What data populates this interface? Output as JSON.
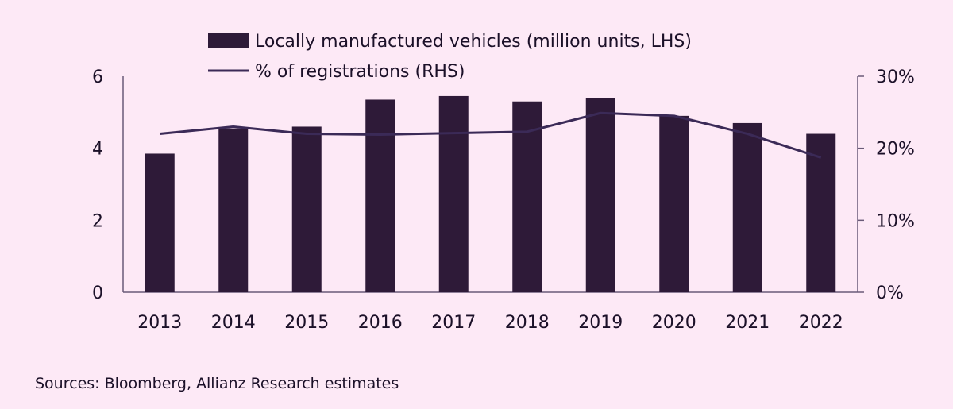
{
  "chart_data": {
    "type": "bar",
    "categories": [
      "2013",
      "2014",
      "2015",
      "2016",
      "2017",
      "2018",
      "2019",
      "2020",
      "2021",
      "2022"
    ],
    "series": [
      {
        "name": "Locally manufactured vehicles (million units, LHS)",
        "type": "bar",
        "axis": "left",
        "values": [
          3.85,
          4.55,
          4.6,
          5.35,
          5.45,
          5.3,
          5.4,
          4.9,
          4.7,
          4.4
        ]
      },
      {
        "name": "% of registrations (RHS)",
        "type": "line",
        "axis": "right",
        "values": [
          22.0,
          23.0,
          22.0,
          21.9,
          22.1,
          22.3,
          24.9,
          24.5,
          22.0,
          18.7
        ]
      }
    ],
    "left_axis": {
      "ylim": [
        0,
        6
      ],
      "ticks": [
        "0",
        "2",
        "4",
        "6"
      ]
    },
    "right_axis": {
      "ylim": [
        0,
        30
      ],
      "ticks": [
        "0%",
        "10%",
        "20%",
        "30%"
      ]
    },
    "colors": {
      "bar": "#2e1a38",
      "line": "#3b2a57",
      "axis": "#6a5a78"
    },
    "legend_position": "top-center"
  },
  "source": "Sources: Bloomberg, Allianz Research estimates"
}
